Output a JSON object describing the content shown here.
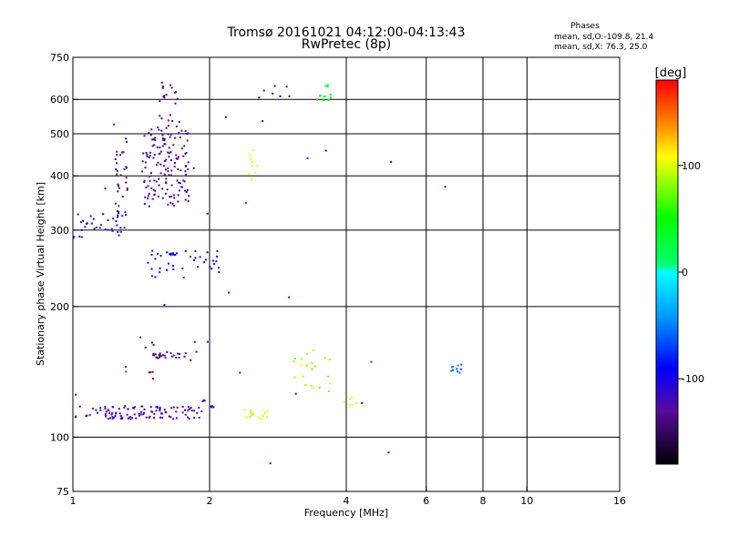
{
  "header": {
    "title_line1": "Tromsø 20161021 04:12:00-04:13:43",
    "title_line2": "RwPretec (8p)"
  },
  "stats": {
    "heading": "Phases",
    "line1": "mean, sd,O:-109.8, 21.4",
    "line2": "mean, sd,X:  76.3, 25.0"
  },
  "colorbar": {
    "label": "[deg]",
    "range": [
      -180,
      180
    ],
    "ticks": [
      {
        "value": 100,
        "label": "100"
      },
      {
        "value": 0,
        "label": "0"
      },
      {
        "value": -100,
        "label": "-100"
      }
    ]
  },
  "chart_data": {
    "type": "scatter",
    "xlabel": "Frequency [MHz]",
    "ylabel": "Stationary phase Virtual Height [km]",
    "xscale": "log",
    "yscale": "log",
    "xlim": [
      1,
      16
    ],
    "ylim": [
      75,
      750
    ],
    "xticks": [
      {
        "value": 1,
        "label": "1"
      },
      {
        "value": 2,
        "label": "2"
      },
      {
        "value": 4,
        "label": "4"
      },
      {
        "value": 6,
        "label": "6"
      },
      {
        "value": 8,
        "label": "8"
      },
      {
        "value": 10,
        "label": "10"
      },
      {
        "value": 16,
        "label": "16"
      }
    ],
    "yticks": [
      {
        "value": 75,
        "label": "75"
      },
      {
        "value": 100,
        "label": "100"
      },
      {
        "value": 200,
        "label": "200"
      },
      {
        "value": 300,
        "label": "300"
      },
      {
        "value": 400,
        "label": "400"
      },
      {
        "value": 500,
        "label": "500"
      },
      {
        "value": 600,
        "label": "600"
      },
      {
        "value": 750,
        "label": "750"
      }
    ],
    "vgrid": [
      2,
      4,
      6,
      8,
      10
    ],
    "hgrid": [
      100,
      200,
      300,
      400,
      500,
      600
    ],
    "clusters": [
      {
        "name": "low-layer-trace",
        "xrange": [
          1.0,
          1.9
        ],
        "yrange": [
          110,
          118
        ],
        "phase": -120,
        "phase_sd": 12,
        "count": 110
      },
      {
        "name": "low-layer-trace-high-freq",
        "xrange": [
          1.92,
          2.05
        ],
        "yrange": [
          114,
          122
        ],
        "phase": -120,
        "phase_sd": 10,
        "count": 8
      },
      {
        "name": "e-layer-streak",
        "xrange": [
          1.5,
          1.78
        ],
        "yrange": [
          152,
          157
        ],
        "phase": -140,
        "phase_sd": 10,
        "count": 25
      },
      {
        "name": "e-layer-scatter",
        "xrange": [
          1.3,
          2.0
        ],
        "yrange": [
          135,
          170
        ],
        "phase": -135,
        "phase_sd": 30,
        "count": 14
      },
      {
        "name": "sporadic-x-mode-low",
        "xrange": [
          2.35,
          2.7
        ],
        "yrange": [
          110,
          116
        ],
        "phase": 95,
        "phase_sd": 15,
        "count": 14
      },
      {
        "name": "x-mode-cluster-3mhz",
        "xrange": [
          3.0,
          3.7
        ],
        "yrange": [
          125,
          162
        ],
        "phase": 85,
        "phase_sd": 30,
        "count": 22
      },
      {
        "name": "x-mode-cluster-3-8mhz",
        "xrange": [
          3.7,
          4.5
        ],
        "yrange": [
          118,
          126
        ],
        "phase": 105,
        "phase_sd": 15,
        "count": 7
      },
      {
        "name": "cyan-patch-7mhz",
        "xrange": [
          6.8,
          7.2
        ],
        "yrange": [
          140,
          148
        ],
        "phase": -60,
        "phase_sd": 15,
        "count": 10
      },
      {
        "name": "f-region-250",
        "xrange": [
          1.45,
          2.1
        ],
        "yrange": [
          233,
          270
        ],
        "phase": -95,
        "phase_sd": 20,
        "count": 45
      },
      {
        "name": "f-region-300",
        "xrange": [
          1.0,
          1.32
        ],
        "yrange": [
          288,
          330
        ],
        "phase": -105,
        "phase_sd": 25,
        "count": 30
      },
      {
        "name": "f2-column-1-3mhz",
        "xrange": [
          1.24,
          1.32
        ],
        "yrange": [
          300,
          500
        ],
        "phase": -140,
        "phase_sd": 12,
        "count": 35
      },
      {
        "name": "f2-main-cloud",
        "xrange": [
          1.42,
          1.8
        ],
        "yrange": [
          340,
          520
        ],
        "phase": -130,
        "phase_sd": 15,
        "count": 150
      },
      {
        "name": "f2-upper-streak",
        "xrange": [
          1.55,
          1.72
        ],
        "yrange": [
          520,
          660
        ],
        "phase": -135,
        "phase_sd": 12,
        "count": 20
      },
      {
        "name": "upper-x-mode-600",
        "xrange": [
          2.5,
          3.0
        ],
        "yrange": [
          600,
          650
        ],
        "phase": -130,
        "phase_sd": 40,
        "count": 7
      },
      {
        "name": "green-patch-3-4mhz",
        "xrange": [
          3.45,
          3.7
        ],
        "yrange": [
          590,
          650
        ],
        "phase": 40,
        "phase_sd": 15,
        "count": 12
      },
      {
        "name": "yellow-column-2-5mhz",
        "xrange": [
          2.43,
          2.55
        ],
        "yrange": [
          385,
          460
        ],
        "phase": 110,
        "phase_sd": 10,
        "count": 10
      },
      {
        "name": "isolated-points",
        "xrange": [
          1.0,
          6.8
        ],
        "yrange": [
          80,
          700
        ],
        "phase": -90,
        "phase_sd": 60,
        "count": 25
      }
    ]
  }
}
